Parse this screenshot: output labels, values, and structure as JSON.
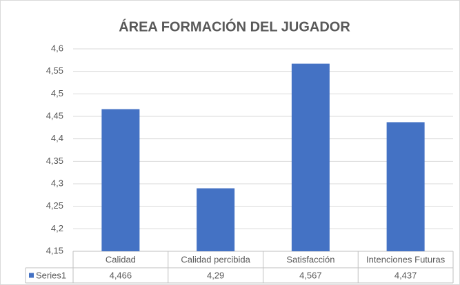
{
  "chart_data": {
    "type": "bar",
    "title": "ÁREA FORMACIÓN DEL JUGADOR",
    "categories": [
      "Calidad",
      "Calidad percibida",
      "Satisfacción",
      "Intenciones Futuras"
    ],
    "series": [
      {
        "name": "Series1",
        "color": "#4472c4",
        "values": [
          4.466,
          4.29,
          4.567,
          4.437
        ],
        "value_labels": [
          "4,466",
          "4,29",
          "4,567",
          "4,437"
        ]
      }
    ],
    "ylim": [
      4.15,
      4.6
    ],
    "yticks": [
      {
        "value": 4.15,
        "label": "4,15"
      },
      {
        "value": 4.2,
        "label": "4,2"
      },
      {
        "value": 4.25,
        "label": "4,25"
      },
      {
        "value": 4.3,
        "label": "4,3"
      },
      {
        "value": 4.35,
        "label": "4,35"
      },
      {
        "value": 4.4,
        "label": "4,4"
      },
      {
        "value": 4.45,
        "label": "4,45"
      },
      {
        "value": 4.5,
        "label": "4,5"
      },
      {
        "value": 4.55,
        "label": "4,55"
      },
      {
        "value": 4.6,
        "label": "4,6"
      }
    ],
    "grid": true
  }
}
